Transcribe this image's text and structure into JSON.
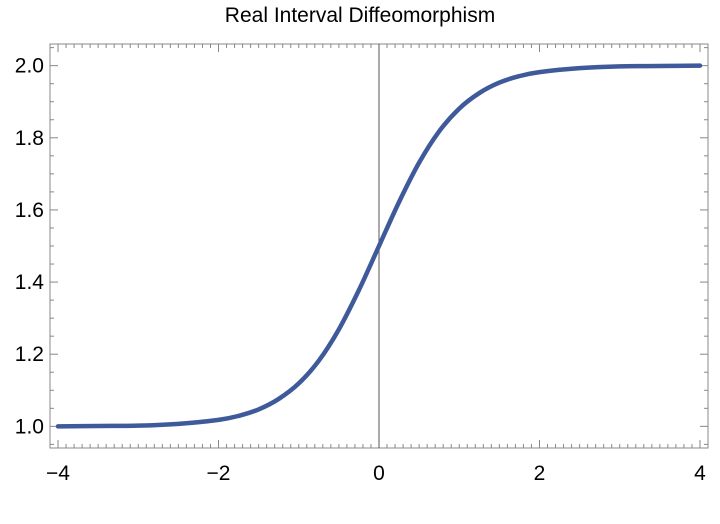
{
  "chart_data": {
    "type": "line",
    "title": "Real Interval Diffeomorphism",
    "xlabel": "",
    "ylabel": "",
    "xlim": [
      -4.1,
      4.1
    ],
    "ylim": [
      0.94,
      2.06
    ],
    "grid": false,
    "x_ticks": [
      -4,
      -2,
      0,
      2,
      4
    ],
    "x_tick_labels": [
      "−4",
      "−2",
      "0",
      "2",
      "4"
    ],
    "y_ticks": [
      1.0,
      1.2,
      1.4,
      1.6,
      1.8,
      2.0
    ],
    "y_tick_labels": [
      "1.0",
      "1.2",
      "1.4",
      "1.6",
      "1.8",
      "2.0"
    ],
    "series": [
      {
        "color": "#3f5a9a",
        "x": [
          -4,
          -3.5,
          -3,
          -2.5,
          -2,
          -1.75,
          -1.5,
          -1.25,
          -1,
          -0.75,
          -0.5,
          -0.25,
          0,
          0.25,
          0.5,
          0.75,
          1,
          1.25,
          1.5,
          1.75,
          2,
          2.5,
          3,
          3.5,
          4
        ],
        "y": [
          1.0,
          1.001,
          1.002,
          1.007,
          1.018,
          1.029,
          1.047,
          1.076,
          1.119,
          1.182,
          1.269,
          1.378,
          1.5,
          1.622,
          1.731,
          1.818,
          1.881,
          1.924,
          1.953,
          1.971,
          1.982,
          1.993,
          1.998,
          1.999,
          2.0
        ]
      }
    ]
  }
}
